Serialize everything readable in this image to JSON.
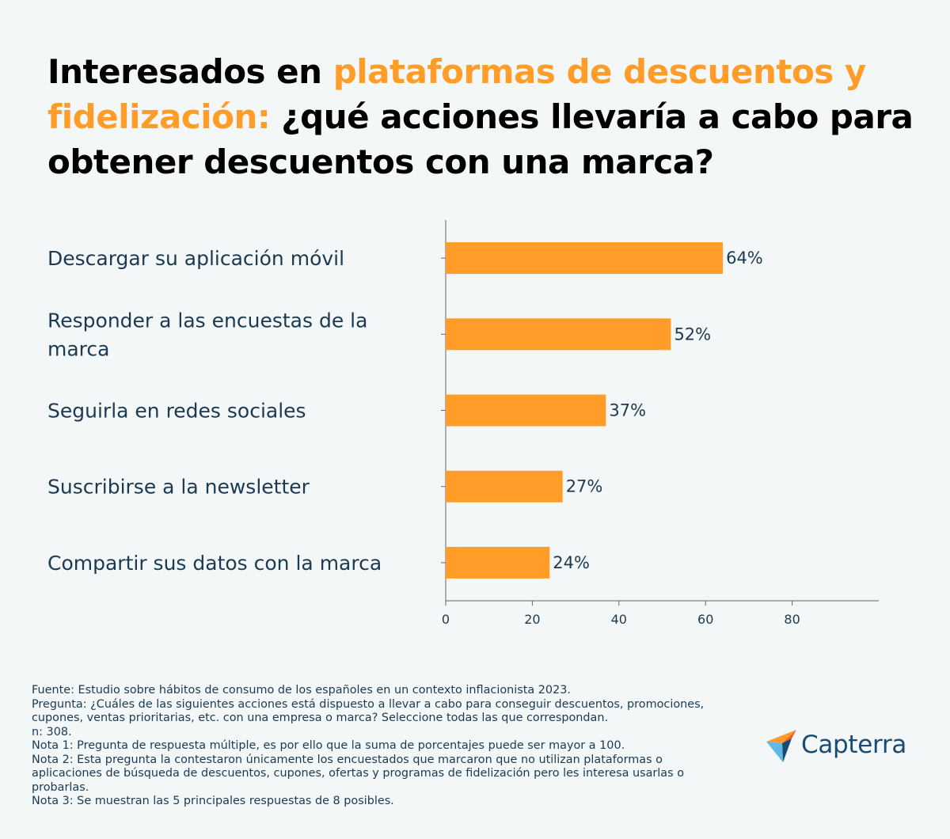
{
  "title": {
    "part1": "Interesados en ",
    "highlight": "plataformas de descuentos y fidelización:",
    "part2": " ¿qué acciones llevaría a cabo para obtener descuentos con una marca?"
  },
  "chart_data": {
    "type": "bar",
    "orientation": "horizontal",
    "categories": [
      [
        "Descargar su aplicación móvil"
      ],
      [
        "Responder a las encuestas de la",
        "marca"
      ],
      [
        "Seguirla en redes sociales"
      ],
      [
        "Suscribirse a la newsletter"
      ],
      [
        "Compartir sus datos con la marca"
      ]
    ],
    "values": [
      64,
      52,
      37,
      27,
      24
    ],
    "value_labels": [
      "64%",
      "52%",
      "37%",
      "27%",
      "24%"
    ],
    "xlim": [
      0,
      100
    ],
    "xticks": [
      0,
      20,
      40,
      60,
      80
    ],
    "bar_color": "#ff9d28"
  },
  "notes": [
    "Fuente: Estudio sobre hábitos de consumo de los españoles en un contexto inflacionista 2023.",
    "Pregunta: ¿Cuáles de las siguientes acciones está dispuesto a llevar a cabo para conseguir descuentos, promociones, cupones, ventas prioritarias, etc. con una empresa o marca? Seleccione todas las que correspondan.",
    "n: 308.",
    "Nota 1: Pregunta de respuesta múltiple, es por ello que la suma de porcentajes puede ser mayor a 100.",
    "Nota 2: Esta pregunta la contestaron únicamente los encuestados que marcaron que no utilizan plataformas o aplicaciones de búsqueda de descuentos, cupones, ofertas y programas de fidelización pero les interesa usarlas o probarlas.",
    "Nota 3: Se muestran las 5 principales respuestas de 8 posibles."
  ],
  "logo": {
    "text": "Capterra",
    "icon": "capterra-arrow-icon"
  }
}
